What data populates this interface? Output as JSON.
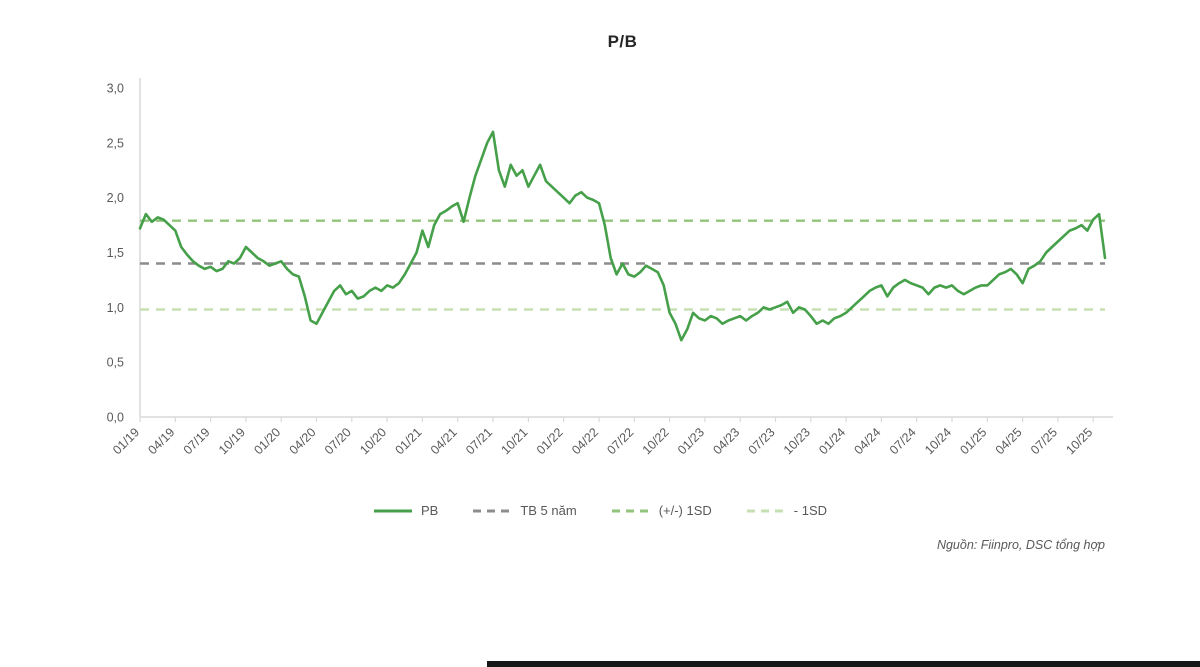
{
  "page": {
    "source_note": "Nguồn: Fiinpro, DSC tổng hợp"
  },
  "chart_data": {
    "type": "line",
    "title": "P/B",
    "xlabel": "",
    "ylabel": "",
    "ylim": [
      0,
      3.0
    ],
    "grid": false,
    "legend_position": "bottom",
    "y_ticks": {
      "labels": [
        "0,0",
        "0,5",
        "1,0",
        "1,5",
        "2,0",
        "2,5",
        "3,0"
      ],
      "values": [
        0,
        0.5,
        1.0,
        1.5,
        2.0,
        2.5,
        3.0
      ]
    },
    "x_tick_labels": [
      "01/19",
      "04/19",
      "07/19",
      "10/19",
      "01/20",
      "04/20",
      "07/20",
      "10/20",
      "01/21",
      "04/21",
      "07/21",
      "10/21",
      "01/22",
      "04/22",
      "07/22",
      "10/22",
      "01/23",
      "04/23",
      "07/23",
      "10/23",
      "01/24",
      "04/24",
      "07/24",
      "10/24",
      "01/25",
      "04/25",
      "07/25",
      "10/25"
    ],
    "x_tick_every": 6,
    "series": [
      {
        "name": "PB",
        "type": "line",
        "color": "#45a049",
        "values": [
          1.72,
          1.85,
          1.78,
          1.82,
          1.8,
          1.75,
          1.7,
          1.55,
          1.48,
          1.42,
          1.38,
          1.35,
          1.37,
          1.33,
          1.35,
          1.42,
          1.4,
          1.45,
          1.55,
          1.5,
          1.45,
          1.42,
          1.38,
          1.4,
          1.42,
          1.35,
          1.3,
          1.28,
          1.1,
          0.88,
          0.85,
          0.95,
          1.05,
          1.15,
          1.2,
          1.12,
          1.15,
          1.08,
          1.1,
          1.15,
          1.18,
          1.15,
          1.2,
          1.18,
          1.22,
          1.3,
          1.4,
          1.5,
          1.7,
          1.55,
          1.75,
          1.85,
          1.88,
          1.92,
          1.95,
          1.78,
          2.0,
          2.2,
          2.35,
          2.5,
          2.6,
          2.25,
          2.1,
          2.3,
          2.2,
          2.25,
          2.1,
          2.2,
          2.3,
          2.15,
          2.1,
          2.05,
          2.0,
          1.95,
          2.02,
          2.05,
          2.0,
          1.98,
          1.95,
          1.75,
          1.45,
          1.3,
          1.4,
          1.3,
          1.28,
          1.32,
          1.38,
          1.35,
          1.32,
          1.2,
          0.95,
          0.85,
          0.7,
          0.8,
          0.95,
          0.9,
          0.88,
          0.92,
          0.9,
          0.85,
          0.88,
          0.9,
          0.92,
          0.88,
          0.92,
          0.95,
          1.0,
          0.98,
          1.0,
          1.02,
          1.05,
          0.95,
          1.0,
          0.98,
          0.92,
          0.85,
          0.88,
          0.85,
          0.9,
          0.92,
          0.95,
          1.0,
          1.05,
          1.1,
          1.15,
          1.18,
          1.2,
          1.1,
          1.18,
          1.22,
          1.25,
          1.22,
          1.2,
          1.18,
          1.12,
          1.18,
          1.2,
          1.18,
          1.2,
          1.15,
          1.12,
          1.15,
          1.18,
          1.2,
          1.2,
          1.25,
          1.3,
          1.32,
          1.35,
          1.3,
          1.22,
          1.35,
          1.38,
          1.42,
          1.5,
          1.55,
          1.6,
          1.65,
          1.7,
          1.72,
          1.75,
          1.7,
          1.8,
          1.85,
          1.45
        ]
      },
      {
        "name": "TB 5 năm",
        "type": "hline",
        "style": "dashed",
        "color": "#8c8c8c",
        "value": 1.4
      },
      {
        "name": "(+/-) 1SD",
        "type": "hline",
        "style": "dashed",
        "color": "#93c47d",
        "value": 1.79
      },
      {
        "name": "- 1SD",
        "type": "hline",
        "style": "dashed",
        "color": "#c6e0b4",
        "value": 0.98
      }
    ]
  }
}
